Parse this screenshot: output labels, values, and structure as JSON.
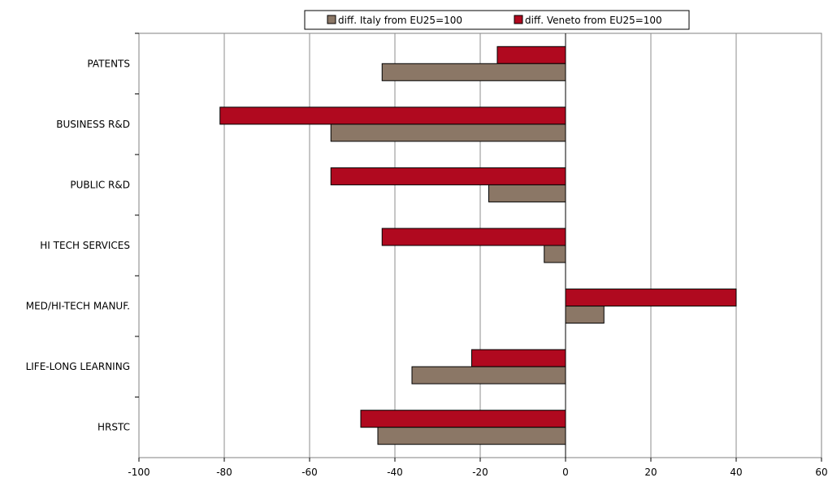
{
  "chart_data": {
    "type": "bar",
    "orientation": "horizontal",
    "categories": [
      "PATENTS",
      "BUSINESS R&D",
      "PUBLIC R&D",
      "HI TECH SERVICES",
      "MED/HI-TECH MANUF.",
      "LIFE-LONG LEARNING",
      "HRSTC"
    ],
    "series": [
      {
        "name": "diff. Italy from EU25=100",
        "color": "#8b7766",
        "values": [
          -43,
          -55,
          -18,
          -5,
          9,
          -36,
          -44
        ]
      },
      {
        "name": "diff. Veneto from EU25=100",
        "color": "#b0091f",
        "values": [
          -16,
          -81,
          -55,
          -43,
          40,
          -22,
          -48
        ]
      }
    ],
    "xlim": [
      -100,
      60
    ],
    "xticks": [
      -100,
      -80,
      -60,
      -40,
      -20,
      0,
      20,
      40,
      60
    ],
    "grid": "vertical",
    "legend": "top"
  }
}
